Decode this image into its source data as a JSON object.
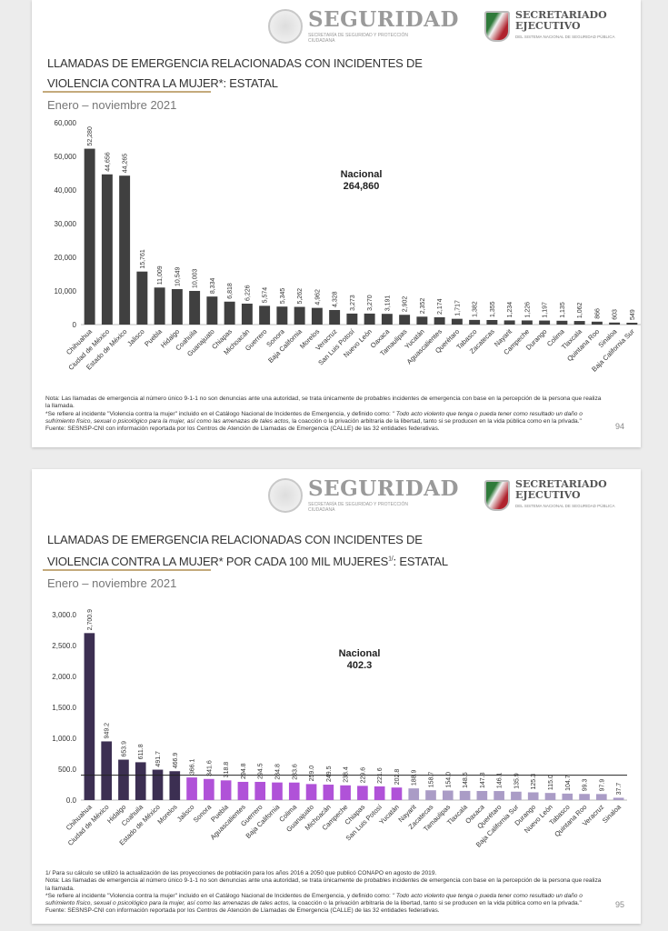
{
  "header": {
    "logo_main": "SEGURIDAD",
    "logo_main_sub": "SECRETARÍA DE SEGURIDAD Y PROTECCIÓN CIUDADANA",
    "logo_second": "SECRETARIADO EJECUTIVO",
    "logo_second_sub": "DEL SISTEMA NACIONAL DE SEGURIDAD PÚBLICA"
  },
  "slides": [
    {
      "title_line1": "LLAMADAS DE EMERGENCIA RELACIONADAS CON INCIDENTES DE",
      "title_line2": "VIOLENCIA CONTRA LA MUJER*: ESTATAL",
      "period": "Enero – noviembre 2021",
      "national_label": "Nacional",
      "national_value": "264,860",
      "footnote_cap": "",
      "note": "Nota: Las llamadas de emergencia al número único 9-1-1 no son denuncias ante una autoridad, se trata únicamente de probables incidentes de emergencia con base en la percepción de la persona que realiza la llamada.",
      "def_intro": "*Se refiere al incidente \"Violencia contra la mujer\" incluido en el Catálogo Nacional de Incidentes de Emergencia, y definido como: ",
      "def_italic": "\" Todo acto violento que tenga o pueda tener como resultado un daño o sufrimiento físico, sexual o psicológico para la mujer, así como las amenazas de tales actos,",
      "def_end": " la coacción o la privación arbitraria de la libertad, tanto si se producen en la vida pública como en la privada.\"",
      "source": "Fuente: SESNSP-CNI con información reportada por los Centros de Atención de Llamadas de Emergencia (CALLE) de las 32 entidades federativas.",
      "page": "94"
    },
    {
      "title_line1": "LLAMADAS DE EMERGENCIA RELACIONADAS CON INCIDENTES DE",
      "title_line2": "VIOLENCIA CONTRA LA MUJER* POR CADA 100 MIL MUJERES",
      "title_sup": "1/",
      "title_end": ": ESTATAL",
      "period": "Enero – noviembre 2021",
      "national_label": "Nacional",
      "national_value": "402.3",
      "footnote_cap": "1/ Para su cálculo se utilizó la actualización de las proyecciones de población para los años 2016 a 2050 que publicó CONAPO en agosto de 2019.",
      "note": "Nota: Las llamadas de emergencia al número único 9-1-1 no son denuncias ante una autoridad, se trata únicamente de probables incidentes de emergencia con base en la percepción de la persona que realiza la llamada.",
      "def_intro": "*Se refiere al incidente \"Violencia contra la mujer\" incluido en el Catálogo Nacional de Incidentes de Emergencia, y definido como: ",
      "def_italic": "\" Todo acto violento que tenga o pueda tener como resultado un daño o sufrimiento físico, sexual o psicológico para la mujer, así como las amenazas de tales actos,",
      "def_end": " la coacción o la privación arbitraria de la libertad, tanto si se producen en la vida pública como en la privada.\"",
      "source": "Fuente: SESNSP-CNI con información reportada por los Centros de Atención de Llamadas de Emergencia (CALLE) de las 32 entidades federativas.",
      "page": "95"
    }
  ],
  "chart_data": [
    {
      "type": "bar",
      "title": "LLAMADAS DE EMERGENCIA RELACIONADAS CON INCIDENTES DE VIOLENCIA CONTRA LA MUJER*: ESTATAL",
      "xlabel": "",
      "ylabel": "",
      "ylim": [
        0,
        60000
      ],
      "yticks": [
        "0",
        "10,000",
        "20,000",
        "30,000",
        "40,000",
        "50,000",
        "60,000"
      ],
      "grid": false,
      "categories": [
        "Chihuahua",
        "Ciudad de México",
        "Estado de México",
        "Jalisco",
        "Puebla",
        "Hidalgo",
        "Coahuila",
        "Guanajuato",
        "Chiapas",
        "Michoacán",
        "Guerrero",
        "Sonora",
        "Baja California",
        "Morelos",
        "Veracruz",
        "San Luis Potosí",
        "Nuevo León",
        "Oaxaca",
        "Tamaulipas",
        "Yucatán",
        "Aguascalientes",
        "Querétaro",
        "Tabasco",
        "Zacatecas",
        "Nayarit",
        "Campeche",
        "Durango",
        "Colima",
        "Tlaxcala",
        "Quintana Roo",
        "Sinaloa",
        "Baja California Sur"
      ],
      "values": [
        52280,
        44656,
        44265,
        15761,
        11009,
        10549,
        10003,
        8334,
        6818,
        6226,
        5574,
        5345,
        5262,
        4962,
        4328,
        3273,
        3270,
        3191,
        2902,
        2352,
        2174,
        1717,
        1382,
        1355,
        1234,
        1226,
        1197,
        1135,
        1062,
        866,
        603,
        549
      ],
      "labels": [
        "52,280",
        "44,656",
        "44,265",
        "15,761",
        "11,009",
        "10,549",
        "10,003",
        "8,334",
        "6,818",
        "6,226",
        "5,574",
        "5,345",
        "5,262",
        "4,962",
        "4,328",
        "3,273",
        "3,270",
        "3,191",
        "2,902",
        "2,352",
        "2,174",
        "1,717",
        "1,382",
        "1,355",
        "1,234",
        "1,226",
        "1,197",
        "1,135",
        "1,062",
        "866",
        "603",
        "549"
      ],
      "colors": {
        "bar": "#404040"
      }
    },
    {
      "type": "bar",
      "title": "LLAMADAS DE EMERGENCIA RELACIONADAS CON INCIDENTES DE VIOLENCIA CONTRA LA MUJER* POR CADA 100 MIL MUJERES1/: ESTATAL",
      "xlabel": "",
      "ylabel": "",
      "ylim": [
        0,
        3000
      ],
      "yticks": [
        "0.0",
        "500.0",
        "1,000.0",
        "1,500.0",
        "2,000.0",
        "2,500.0",
        "3,000.0"
      ],
      "grid": false,
      "reference_line": 402.3,
      "categories": [
        "Chihuahua",
        "Ciudad de México",
        "Hidalgo",
        "Coahuila",
        "Estado de México",
        "Morelos",
        "Jalisco",
        "Sonora",
        "Puebla",
        "Aguascalientes",
        "Guerrero",
        "Baja California",
        "Colima",
        "Guanajuato",
        "Michoacán",
        "Campeche",
        "Chiapas",
        "San Luis Potosí",
        "Yucatán",
        "Nayarit",
        "Zacatecas",
        "Tamaulipas",
        "Tlaxcala",
        "Oaxaca",
        "Querétaro",
        "Baja California Sur",
        "Durango",
        "Nuevo León",
        "Tabasco",
        "Quintana Roo",
        "Veracruz",
        "Sinaloa"
      ],
      "values": [
        2700.9,
        949.2,
        653.9,
        611.8,
        491.7,
        466.9,
        366.1,
        341.6,
        318.8,
        294.8,
        294.5,
        284.8,
        283.6,
        259.0,
        249.5,
        238.4,
        229.6,
        221.6,
        202.8,
        188.9,
        158.7,
        154.0,
        148.5,
        147.3,
        146.1,
        135.9,
        125.3,
        115.0,
        104.7,
        99.3,
        97.9,
        37.7
      ],
      "labels": [
        "2,700.9",
        "949.2",
        "653.9",
        "611.8",
        "491.7",
        "466.9",
        "366.1",
        "341.6",
        "318.8",
        "294.8",
        "294.5",
        "284.8",
        "283.6",
        "259.0",
        "249.5",
        "238.4",
        "229.6",
        "221.6",
        "202.8",
        "188.9",
        "158.7",
        "154.0",
        "148.5",
        "147.3",
        "146.1",
        "135.9",
        "125.3",
        "115.0",
        "104.7",
        "99.3",
        "97.9",
        "37.7"
      ],
      "colors": {
        "high": "#3c2f52",
        "mid": "#b052d8",
        "low": "#aa9cc6",
        "reference": "#222222"
      },
      "color_groups": [
        6,
        13,
        13
      ]
    }
  ]
}
